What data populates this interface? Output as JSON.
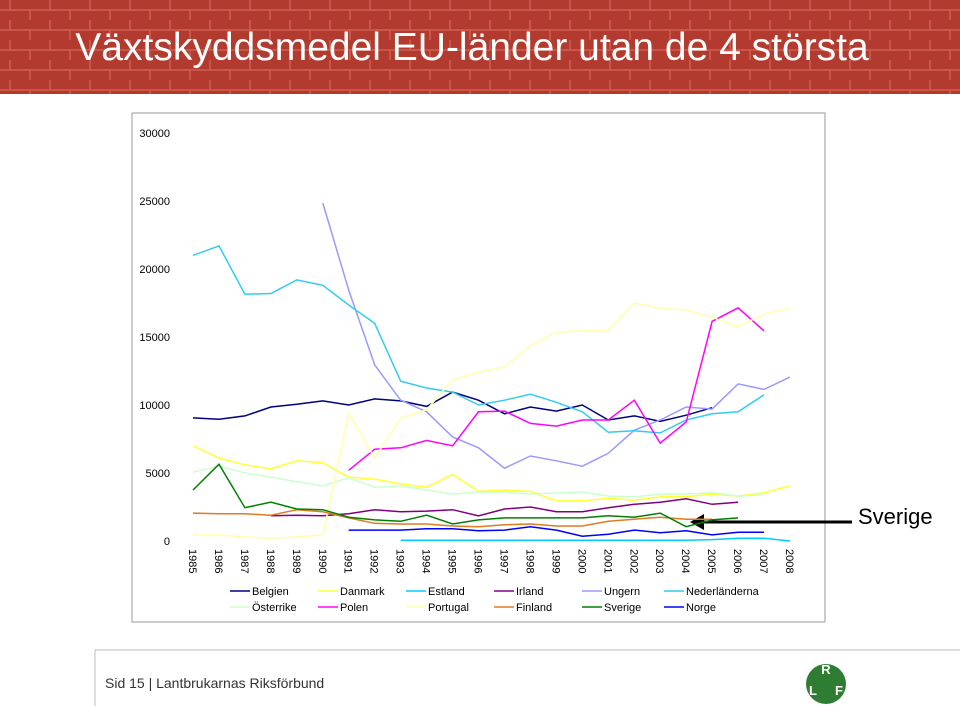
{
  "chart_data": {
    "type": "line",
    "title": "Växtskyddsmedel EU-länder  utan de 4 största",
    "annotation": "Sverige",
    "categories": [
      "1985",
      "1986",
      "1987",
      "1988",
      "1989",
      "1990",
      "1991",
      "1992",
      "1993",
      "1994",
      "1995",
      "1996",
      "1997",
      "1998",
      "1999",
      "2000",
      "2001",
      "2002",
      "2003",
      "2004",
      "2005",
      "2006",
      "2007",
      "2008"
    ],
    "ylim": [
      0,
      30000
    ],
    "yticks": [
      0,
      5000,
      10000,
      15000,
      20000,
      25000,
      30000
    ],
    "grid": false,
    "legend": "bottom",
    "series": [
      {
        "name": "Belgien",
        "color": "#000080",
        "values": [
          9050,
          8950,
          9200,
          9850,
          10050,
          10300,
          10000,
          10450,
          10300,
          9900,
          10950,
          10350,
          9350,
          9850,
          9550,
          10000,
          8900,
          9200,
          8800,
          9250,
          9800,
          null,
          null,
          null
        ]
      },
      {
        "name": "Danmark",
        "color": "#ffff33",
        "values": [
          7000,
          6100,
          5600,
          5300,
          5900,
          5750,
          4700,
          4550,
          4200,
          3950,
          4900,
          3650,
          3750,
          3650,
          2950,
          2950,
          3150,
          3000,
          3250,
          3250,
          3450,
          3300,
          3550,
          4050
        ]
      },
      {
        "name": "Estland",
        "color": "#00ccff",
        "values": [
          null,
          null,
          null,
          null,
          null,
          null,
          null,
          null,
          50,
          50,
          50,
          50,
          50,
          50,
          50,
          50,
          50,
          50,
          50,
          50,
          100,
          200,
          200,
          0
        ]
      },
      {
        "name": "Irland",
        "color": "#800080",
        "values": [
          null,
          null,
          null,
          1850,
          1900,
          1850,
          2000,
          2300,
          2150,
          2200,
          2300,
          1850,
          2350,
          2500,
          2150,
          2150,
          2450,
          2700,
          2850,
          3100,
          2700,
          2850,
          null,
          null
        ]
      },
      {
        "name": "Ungern",
        "color": "#9999ff",
        "values": [
          null,
          null,
          null,
          null,
          null,
          24850,
          18450,
          12950,
          10350,
          9500,
          7650,
          6850,
          5350,
          6250,
          5900,
          5500,
          6450,
          8150,
          8900,
          9850,
          9700,
          11550,
          11150,
          12050
        ]
      },
      {
        "name": "Nederländerna",
        "color": "#33ccee",
        "values": [
          21000,
          21700,
          18150,
          18200,
          19200,
          18800,
          17350,
          16000,
          11750,
          11250,
          10950,
          10000,
          10350,
          10800,
          10200,
          9500,
          8000,
          8100,
          7950,
          8900,
          9350,
          9500,
          10750,
          null
        ]
      },
      {
        "name": "Österrike",
        "color": "#ccffcc",
        "values": [
          5050,
          5500,
          5000,
          4700,
          4350,
          4050,
          4650,
          3950,
          4050,
          3750,
          3450,
          3600,
          3600,
          3450,
          3550,
          3600,
          3300,
          3250,
          3450,
          3450,
          3550,
          3300,
          3400,
          null
        ]
      },
      {
        "name": "Polen",
        "color": "#ff00ff",
        "values": [
          null,
          null,
          null,
          null,
          null,
          null,
          5200,
          6750,
          6850,
          7400,
          7000,
          9500,
          9550,
          8650,
          8450,
          8900,
          8900,
          10350,
          7200,
          8750,
          16150,
          17150,
          15450,
          null
        ]
      },
      {
        "name": "Portugal",
        "color": "#ffffaa",
        "values": [
          450,
          450,
          300,
          200,
          300,
          450,
          9400,
          6100,
          9050,
          9650,
          11850,
          12400,
          12800,
          14350,
          15350,
          15450,
          15500,
          17500,
          17100,
          17000,
          16450,
          15750,
          16700,
          17150
        ]
      },
      {
        "name": "Finland",
        "color": "#e07b20",
        "values": [
          2050,
          2000,
          2000,
          1900,
          2300,
          2150,
          1700,
          1300,
          1250,
          1250,
          1100,
          1050,
          1200,
          1250,
          1100,
          1100,
          1450,
          1600,
          1750,
          1600,
          1600,
          null,
          null,
          null
        ]
      },
      {
        "name": "Sverige",
        "color": "#008000",
        "values": [
          3750,
          5650,
          2450,
          2850,
          2350,
          2300,
          1750,
          1550,
          1450,
          1900,
          1250,
          1550,
          1700,
          1700,
          1700,
          1700,
          1850,
          1750,
          2050,
          1050,
          1550,
          1700,
          null,
          null
        ]
      },
      {
        "name": "Norge",
        "color": "#0000ff",
        "values": [
          null,
          null,
          null,
          null,
          null,
          null,
          800,
          800,
          800,
          900,
          900,
          750,
          800,
          1050,
          800,
          350,
          500,
          800,
          600,
          750,
          450,
          650,
          650,
          null
        ]
      }
    ]
  },
  "footer": {
    "text": "Sid 15 | Lantbrukarnas Riksförbund",
    "logo_letters": [
      "R",
      "L",
      "F"
    ]
  }
}
